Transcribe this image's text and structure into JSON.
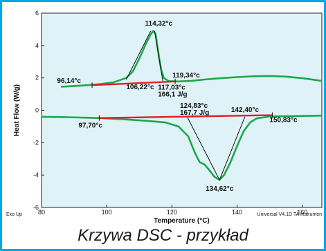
{
  "caption": "Krzywa DSC - przykład",
  "colors": {
    "frame": "#00a6e6",
    "plot_bg": "#dff2f7",
    "curve": "#1aa84a",
    "baseline": "#e02020",
    "tangent": "#111111"
  },
  "chart_data": {
    "type": "line",
    "xlabel": "Temperature (°C)",
    "ylabel": "Heat Flow (W/g)",
    "xlim": [
      80,
      166
    ],
    "ylim": [
      -6,
      6
    ],
    "x_ticks": [
      80,
      100,
      120,
      140,
      160
    ],
    "y_ticks": [
      -6,
      -4,
      -2,
      0,
      2,
      4,
      6
    ],
    "grid": false,
    "footer_left": "Exo Up",
    "footer_right": "Universal V4.1D TA Instrumen",
    "series": [
      {
        "points": [
          [
            86,
            1.45
          ],
          [
            90,
            1.5
          ],
          [
            94,
            1.55
          ],
          [
            98,
            1.62
          ],
          [
            102,
            1.72
          ],
          [
            106,
            2.0
          ],
          [
            108,
            2.4
          ],
          [
            110,
            3.2
          ],
          [
            112,
            4.1
          ],
          [
            113.5,
            4.7
          ],
          [
            114.3,
            4.9
          ],
          [
            115,
            4.7
          ],
          [
            115.8,
            3.6
          ],
          [
            116.6,
            2.6
          ],
          [
            117.5,
            2.0
          ],
          [
            119,
            1.8
          ],
          [
            122,
            1.78
          ],
          [
            126,
            1.82
          ],
          [
            130,
            1.9
          ],
          [
            135,
            1.98
          ],
          [
            140,
            2.05
          ],
          [
            145,
            2.1
          ],
          [
            150,
            2.12
          ],
          [
            155,
            2.08
          ],
          [
            160,
            1.98
          ],
          [
            166,
            1.82
          ]
        ]
      },
      {
        "points": [
          [
            80,
            -0.4
          ],
          [
            86,
            -0.42
          ],
          [
            92,
            -0.45
          ],
          [
            97.7,
            -0.48
          ],
          [
            105,
            -0.55
          ],
          [
            112,
            -0.65
          ],
          [
            118,
            -0.75
          ],
          [
            122,
            -1.0
          ],
          [
            125,
            -1.6
          ],
          [
            127,
            -2.6
          ],
          [
            128.5,
            -3.2
          ],
          [
            130,
            -3.35
          ],
          [
            131.5,
            -3.7
          ],
          [
            133,
            -4.1
          ],
          [
            134.6,
            -4.3
          ],
          [
            136,
            -4.0
          ],
          [
            138,
            -3.2
          ],
          [
            140,
            -2.2
          ],
          [
            142,
            -1.3
          ],
          [
            144,
            -0.75
          ],
          [
            146,
            -0.5
          ],
          [
            150,
            -0.38
          ],
          [
            160,
            -0.35
          ],
          [
            166,
            -0.33
          ]
        ]
      }
    ],
    "baselines": [
      {
        "from": [
          95.5,
          1.55
        ],
        "to": [
          121,
          1.78
        ]
      },
      {
        "from": [
          97.7,
          -0.48
        ],
        "to": [
          150.8,
          -0.3
        ]
      }
    ],
    "tangents": [
      {
        "from": [
          106,
          1.9
        ],
        "to": [
          113.5,
          4.9
        ]
      },
      {
        "from": [
          114.7,
          4.9
        ],
        "to": [
          117.2,
          1.8
        ]
      },
      {
        "from": [
          124.8,
          -0.45
        ],
        "to": [
          134.6,
          -4.3
        ]
      },
      {
        "from": [
          134.6,
          -4.3
        ],
        "to": [
          142.4,
          -0.4
        ]
      }
    ],
    "annotations": [
      {
        "text": "114,32°c",
        "x": 114.3,
        "y": 4.9
      },
      {
        "text": "96,14°c",
        "x": 95.8,
        "y": 1.55
      },
      {
        "text": "106,22°c",
        "x": 106.2,
        "y": 1.9
      },
      {
        "text": "119,34°c",
        "x": 119.3,
        "y": 1.85
      },
      {
        "text": "117,03°c",
        "x": 117.0,
        "y": 1.8
      },
      {
        "text": "166,1 J/g",
        "x": 117.0,
        "y": 1.8
      },
      {
        "text": "124,83°c",
        "x": 124.8,
        "y": -0.45
      },
      {
        "text": "167,7 J/g",
        "x": 124.8,
        "y": -0.45
      },
      {
        "text": "142,40°c",
        "x": 142.4,
        "y": -0.4
      },
      {
        "text": "97,70°c",
        "x": 97.7,
        "y": -0.48
      },
      {
        "text": "150,83°c",
        "x": 150.8,
        "y": -0.3
      },
      {
        "text": "134,62°c",
        "x": 134.6,
        "y": -4.3
      }
    ]
  }
}
